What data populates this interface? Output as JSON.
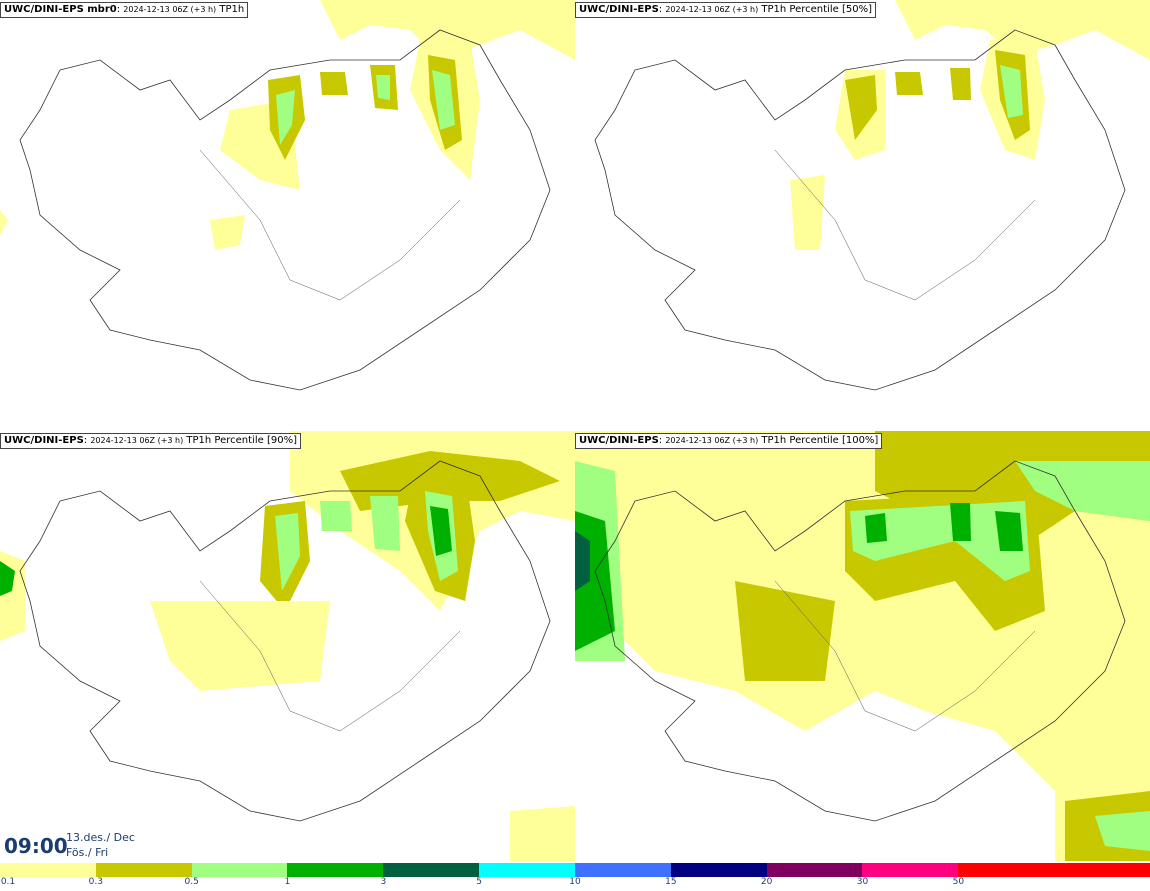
{
  "panels": [
    {
      "title_main": "UWC/DINI-EPS mbr0",
      "title_rest": "2024-12-13 06Z (+3 h)",
      "title_field": "TP1h"
    },
    {
      "title_main": "UWC/DINI-EPS",
      "title_rest": "2024-12-13 06Z (+3 h)",
      "title_field": "TP1h Percentile [50%]"
    },
    {
      "title_main": "UWC/DINI-EPS",
      "title_rest": "2024-12-13 06Z (+3 h)",
      "title_field": "TP1h Percentile [90%]"
    },
    {
      "title_main": "UWC/DINI-EPS",
      "title_rest": "2024-12-13 06Z (+3 h)",
      "title_field": "TP1h Percentile [100%]"
    }
  ],
  "valid_time": {
    "time": "09:00",
    "date": "13.des./ Dec",
    "day": "Fös./ Fri"
  },
  "colorbar": {
    "colors": [
      "#ffff99",
      "#c8c800",
      "#a0ff80",
      "#00b000",
      "#006040",
      "#00ffff",
      "#4070ff",
      "#000080",
      "#800060",
      "#ff0080",
      "#ff0000",
      "#ff0000"
    ],
    "tick_labels": [
      "0.1",
      "0.3",
      "0.5",
      "1",
      "3",
      "5",
      "10",
      "15",
      "20",
      "30",
      "50"
    ]
  }
}
